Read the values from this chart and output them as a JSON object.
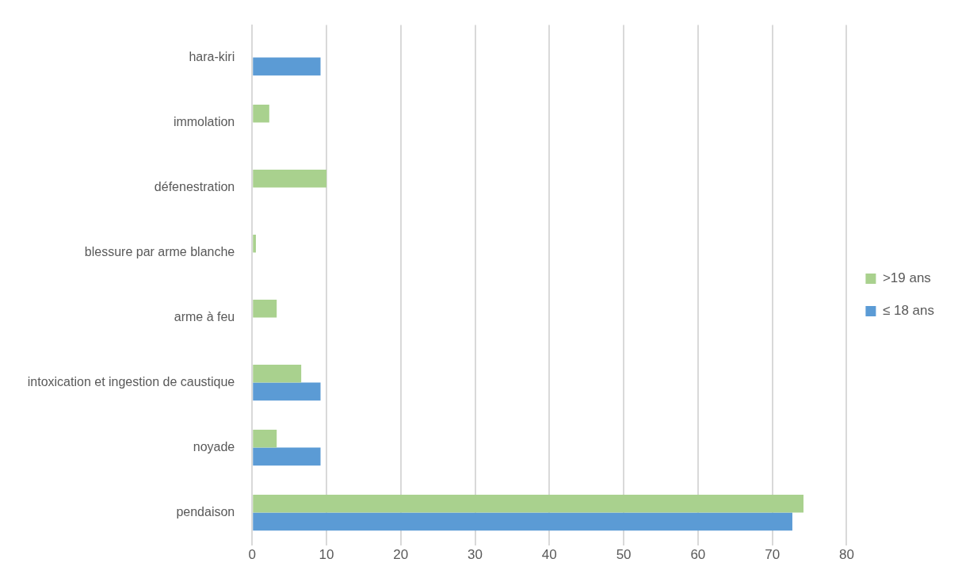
{
  "chart_data": {
    "type": "bar",
    "orientation": "horizontal",
    "categories": [
      "hara-kiri",
      "immolation",
      "défenestration",
      "blessure par arme blanche",
      "arme à feu",
      "intoxication et ingestion de caustique",
      "noyade",
      "pendaison"
    ],
    "series": [
      {
        "name": ">19 ans",
        "color": "#a9d18e",
        "values": [
          null,
          2.3,
          10,
          0.5,
          3.3,
          6.6,
          3.3,
          74.2
        ]
      },
      {
        "name": "≤ 18 ans",
        "color": "#5b9bd5",
        "values": [
          9.2,
          null,
          null,
          null,
          null,
          9.2,
          9.2,
          72.7
        ]
      }
    ],
    "xlim": [
      0,
      80
    ],
    "xticks": [
      0,
      10,
      20,
      30,
      40,
      50,
      60,
      70,
      80
    ],
    "grid": "x",
    "legend": "right"
  }
}
